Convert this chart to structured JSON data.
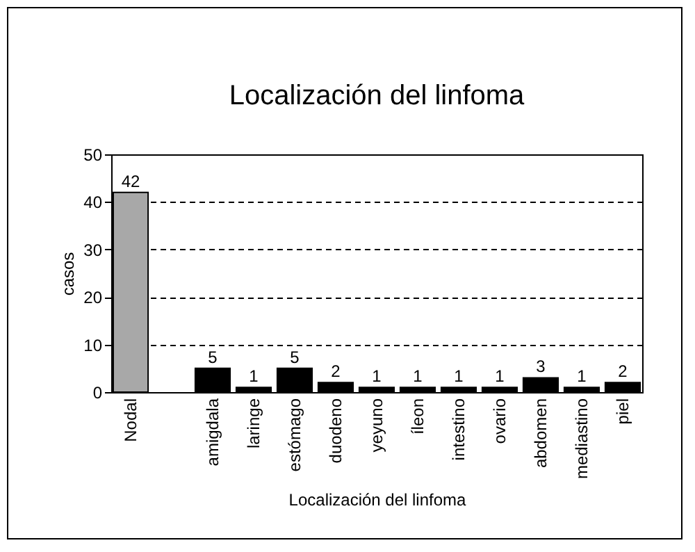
{
  "chart_data": {
    "type": "bar",
    "title": "Localización del linfoma",
    "xlabel": "Localización del linfoma",
    "ylabel": "casos",
    "categories": [
      "Nodal",
      null,
      "amigdala",
      "laringe",
      "estómago",
      "duodeno",
      "yeyuno",
      "íleon",
      "intestino",
      "ovario",
      "abdomen",
      "mediastino",
      "piel"
    ],
    "values": [
      42,
      null,
      5,
      1,
      5,
      2,
      1,
      1,
      1,
      1,
      3,
      1,
      2
    ],
    "colors": [
      "#a8a8a8",
      null,
      "#000000",
      "#000000",
      "#000000",
      "#000000",
      "#000000",
      "#000000",
      "#000000",
      "#000000",
      "#000000",
      "#000000",
      "#000000"
    ],
    "ylim": [
      0,
      50
    ],
    "yticks": [
      0,
      10,
      20,
      30,
      40,
      50
    ],
    "grid": "y",
    "line_style": "dashed",
    "data_labels": true
  }
}
